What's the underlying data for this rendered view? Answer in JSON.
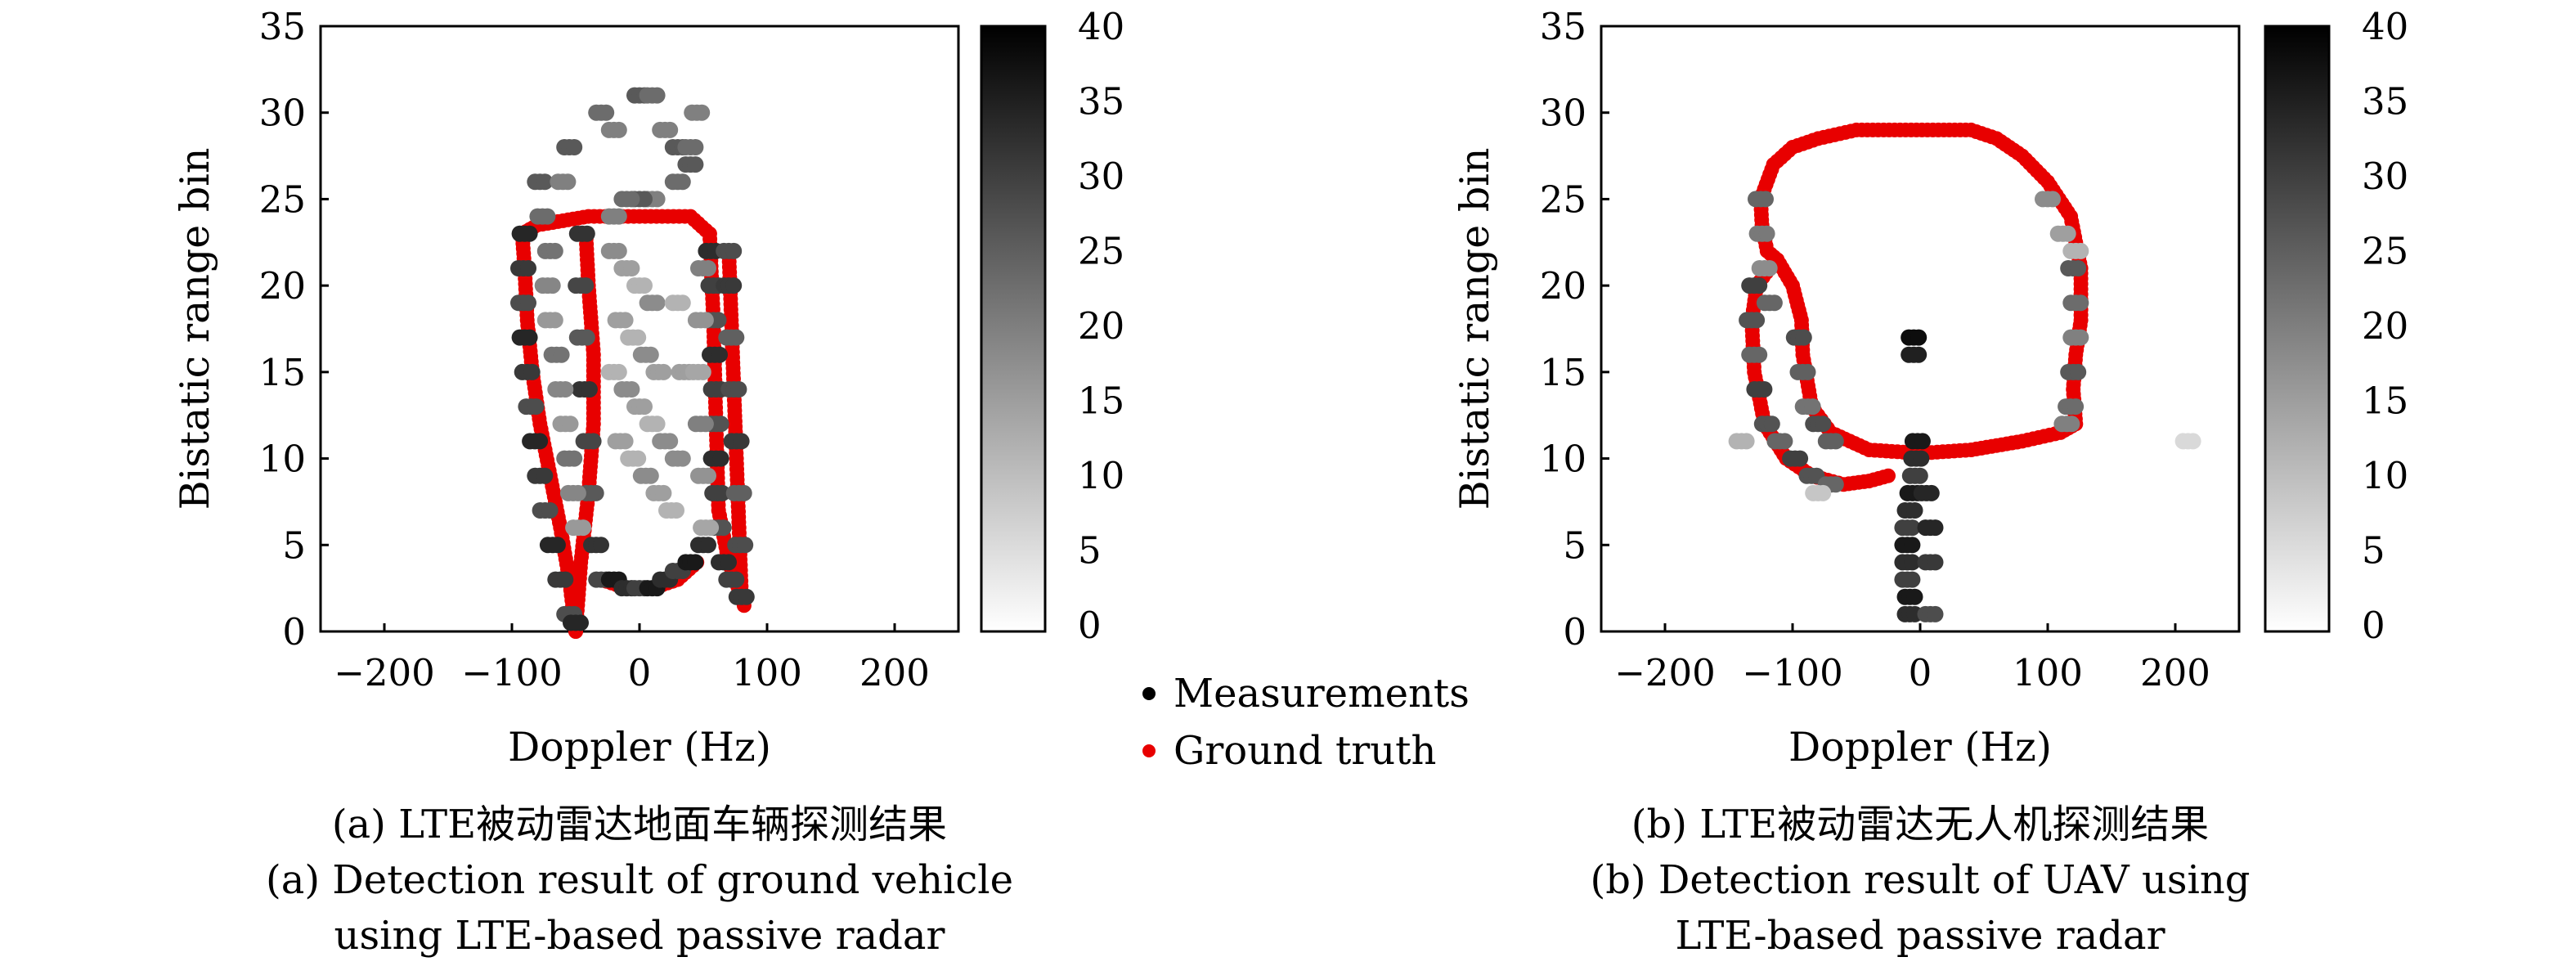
{
  "colors": {
    "measurement_dark": "#000000",
    "measurement_light": "#ffffff",
    "ground_truth": "#e80000"
  },
  "legend": {
    "measurements": "Measurements",
    "ground_truth": "Ground truth"
  },
  "chart_data": [
    {
      "type": "scatter",
      "panel": "a",
      "xlabel": "Doppler (Hz)",
      "ylabel": "Bistatic range bin",
      "xlim": [
        -250,
        250
      ],
      "ylim": [
        0,
        35
      ],
      "xticks": [
        -200,
        -100,
        0,
        100,
        200
      ],
      "yticks": [
        0,
        5,
        10,
        15,
        20,
        25,
        30,
        35
      ],
      "xtick_labels": [
        "−200",
        "−100",
        "0",
        "100",
        "200"
      ],
      "ytick_labels": [
        "0",
        "5",
        "10",
        "15",
        "20",
        "25",
        "30",
        "35"
      ],
      "colorbar": {
        "range": [
          0,
          40
        ],
        "ticks": [
          "0",
          "5",
          "10",
          "15",
          "20",
          "25",
          "30",
          "35",
          "40"
        ],
        "colormap": "white-to-black"
      },
      "caption_cn": "(a) LTE被动雷达地面车辆探测结果",
      "caption_en_1": "(a) Detection result of ground vehicle",
      "caption_en_2": "using LTE-based passive radar",
      "ground_truth": [
        [
          [
            -50,
            0
          ],
          [
            -55,
            3
          ],
          [
            -62,
            6
          ],
          [
            -70,
            9
          ],
          [
            -78,
            12
          ],
          [
            -84,
            15
          ],
          [
            -88,
            18
          ],
          [
            -90,
            21
          ],
          [
            -92,
            23
          ],
          [
            -80,
            23.5
          ],
          [
            -40,
            24
          ],
          [
            0,
            24
          ],
          [
            40,
            24
          ],
          [
            55,
            23
          ]
        ],
        [
          [
            -50,
            0
          ],
          [
            -46,
            4
          ],
          [
            -40,
            8
          ],
          [
            -36,
            12
          ],
          [
            -36,
            16
          ],
          [
            -40,
            20
          ],
          [
            -42,
            23
          ]
        ],
        [
          [
            -30,
            3
          ],
          [
            -10,
            2.5
          ],
          [
            10,
            2.5
          ],
          [
            30,
            3
          ],
          [
            45,
            4
          ]
        ],
        [
          [
            55,
            23
          ],
          [
            58,
            18
          ],
          [
            60,
            12
          ],
          [
            62,
            7
          ],
          [
            70,
            4
          ],
          [
            80,
            2
          ],
          [
            82,
            1.5
          ]
        ],
        [
          [
            80,
            2
          ],
          [
            78,
            6
          ],
          [
            76,
            10
          ],
          [
            74,
            14
          ],
          [
            72,
            18
          ],
          [
            70,
            22
          ]
        ]
      ],
      "measurement_groups": [
        {
          "points": [
            [
              -90,
              23
            ],
            [
              -91,
              21
            ],
            [
              -91,
              19
            ],
            [
              -90,
              17
            ],
            [
              -88,
              15
            ],
            [
              -85,
              13
            ],
            [
              -82,
              11
            ],
            [
              -78,
              9
            ],
            [
              -74,
              7
            ],
            [
              -68,
              5
            ],
            [
              -62,
              3
            ],
            [
              -55,
              1
            ],
            [
              -50,
              0.5
            ]
          ],
          "intensity": 34
        },
        {
          "points": [
            [
              -45,
              23
            ],
            [
              -46,
              20
            ],
            [
              -45,
              17
            ],
            [
              -43,
              14
            ],
            [
              -40,
              11
            ],
            [
              -38,
              8
            ],
            [
              -34,
              5
            ],
            [
              -30,
              3
            ]
          ],
          "intensity": 32
        },
        {
          "points": [
            [
              -20,
              3
            ],
            [
              -10,
              2.5
            ],
            [
              0,
              2.5
            ],
            [
              10,
              2.5
            ],
            [
              20,
              3
            ],
            [
              30,
              3.5
            ],
            [
              40,
              4
            ],
            [
              50,
              5
            ]
          ],
          "intensity": 36
        },
        {
          "points": [
            [
              56,
              22
            ],
            [
              58,
              20
            ],
            [
              58,
              18
            ],
            [
              59,
              16
            ],
            [
              60,
              14
            ],
            [
              60,
              12
            ],
            [
              60,
              10
            ],
            [
              61,
              8
            ],
            [
              62,
              6
            ],
            [
              66,
              4
            ],
            [
              72,
              3
            ]
          ],
          "intensity": 33
        },
        {
          "points": [
            [
              80,
              2
            ],
            [
              79,
              5
            ],
            [
              78,
              8
            ],
            [
              76,
              11
            ],
            [
              74,
              14
            ],
            [
              72,
              17
            ],
            [
              70,
              20
            ],
            [
              70,
              22
            ]
          ],
          "intensity": 31
        },
        {
          "points": [
            [
              -78,
              26
            ],
            [
              -76,
              24
            ],
            [
              -60,
              26
            ],
            [
              -55,
              28
            ],
            [
              -30,
              30
            ],
            [
              -20,
              29
            ],
            [
              0,
              31
            ],
            [
              10,
              31
            ],
            [
              20,
              29
            ],
            [
              30,
              28
            ],
            [
              40,
              28
            ],
            [
              45,
              30
            ],
            [
              40,
              27
            ],
            [
              30,
              26
            ],
            [
              10,
              25
            ],
            [
              0,
              25
            ],
            [
              -10,
              25
            ],
            [
              -20,
              24
            ]
          ],
          "intensity": 26
        },
        {
          "points": [
            [
              -20,
              22
            ],
            [
              -10,
              21
            ],
            [
              0,
              20
            ],
            [
              10,
              19
            ],
            [
              -15,
              18
            ],
            [
              -5,
              17
            ],
            [
              5,
              16
            ],
            [
              15,
              15
            ],
            [
              -20,
              15
            ],
            [
              -10,
              14
            ],
            [
              0,
              13
            ],
            [
              10,
              12
            ],
            [
              20,
              11
            ],
            [
              -15,
              11
            ],
            [
              -5,
              10
            ],
            [
              5,
              9
            ],
            [
              15,
              8
            ],
            [
              25,
              7
            ],
            [
              30,
              10
            ],
            [
              35,
              15
            ],
            [
              30,
              19
            ]
          ],
          "intensity": 18
        },
        {
          "points": [
            [
              -70,
              22
            ],
            [
              -72,
              20
            ],
            [
              -70,
              18
            ],
            [
              -65,
              16
            ],
            [
              -62,
              14
            ],
            [
              -58,
              12
            ],
            [
              -55,
              10
            ],
            [
              -52,
              8
            ],
            [
              -48,
              6
            ]
          ],
          "intensity": 22
        },
        {
          "points": [
            [
              50,
              21
            ],
            [
              48,
              18
            ],
            [
              46,
              15
            ],
            [
              48,
              12
            ],
            [
              50,
              9
            ],
            [
              52,
              6
            ]
          ],
          "intensity": 20
        }
      ]
    },
    {
      "type": "scatter",
      "panel": "b",
      "xlabel": "Doppler (Hz)",
      "ylabel": "Bistatic range bin",
      "xlim": [
        -250,
        250
      ],
      "ylim": [
        0,
        35
      ],
      "xticks": [
        -200,
        -100,
        0,
        100,
        200
      ],
      "yticks": [
        0,
        5,
        10,
        15,
        20,
        25,
        30,
        35
      ],
      "xtick_labels": [
        "−200",
        "−100",
        "0",
        "100",
        "200"
      ],
      "ytick_labels": [
        "0",
        "5",
        "10",
        "15",
        "20",
        "25",
        "30",
        "35"
      ],
      "colorbar": {
        "range": [
          0,
          40
        ],
        "ticks": [
          "0",
          "5",
          "10",
          "15",
          "20",
          "25",
          "30",
          "35",
          "40"
        ],
        "colormap": "white-to-black"
      },
      "caption_cn": "(b) LTE被动雷达无人机探测结果",
      "caption_en_1": "(b) Detection result of UAV using",
      "caption_en_2": "LTE-based passive radar",
      "ground_truth": [
        [
          [
            -125,
            25
          ],
          [
            -115,
            27
          ],
          [
            -100,
            28
          ],
          [
            -80,
            28.5
          ],
          [
            -50,
            29
          ],
          [
            -20,
            29
          ],
          [
            10,
            29
          ],
          [
            40,
            29
          ],
          [
            60,
            28.5
          ],
          [
            80,
            27.5
          ],
          [
            100,
            26
          ],
          [
            118,
            24
          ],
          [
            126,
            21
          ],
          [
            126,
            18
          ],
          [
            122,
            16
          ],
          [
            120,
            14
          ],
          [
            122,
            12
          ],
          [
            110,
            11.5
          ],
          [
            80,
            11
          ],
          [
            40,
            10.5
          ],
          [
            0,
            10.3
          ],
          [
            -40,
            10.5
          ],
          [
            -70,
            11.5
          ],
          [
            -85,
            13
          ],
          [
            -92,
            16
          ],
          [
            -93,
            18
          ],
          [
            -100,
            20
          ],
          [
            -112,
            21.5
          ],
          [
            -120,
            22
          ],
          [
            -124,
            23.5
          ],
          [
            -125,
            25
          ]
        ],
        [
          [
            -118,
            21
          ],
          [
            -128,
            20
          ],
          [
            -132,
            18
          ],
          [
            -130,
            15
          ],
          [
            -122,
            12
          ],
          [
            -105,
            10
          ],
          [
            -85,
            9
          ],
          [
            -60,
            8.5
          ],
          [
            -40,
            8.7
          ],
          [
            -25,
            9
          ]
        ]
      ],
      "measurement_groups": [
        {
          "points": [
            [
              -130,
              20
            ],
            [
              -132,
              18
            ],
            [
              -130,
              16
            ],
            [
              -126,
              14
            ],
            [
              -120,
              12
            ],
            [
              -110,
              11
            ],
            [
              -98,
              10
            ],
            [
              -85,
              9
            ],
            [
              -70,
              8.5
            ]
          ],
          "intensity": 30
        },
        {
          "points": [
            [
              -125,
              25
            ],
            [
              -124,
              23
            ],
            [
              -122,
              21
            ],
            [
              -118,
              19
            ]
          ],
          "intensity": 24
        },
        {
          "points": [
            [
              -95,
              17
            ],
            [
              -92,
              15
            ],
            [
              -88,
              13
            ],
            [
              -80,
              12
            ],
            [
              -70,
              11
            ]
          ],
          "intensity": 28
        },
        {
          "points": [
            [
              120,
              21
            ],
            [
              122,
              19
            ],
            [
              122,
              17
            ],
            [
              120,
              15
            ],
            [
              118,
              13
            ],
            [
              115,
              12
            ]
          ],
          "intensity": 26
        },
        {
          "points": [
            [
              100,
              25
            ],
            [
              112,
              23
            ],
            [
              122,
              22
            ]
          ],
          "intensity": 18
        },
        {
          "points": [
            [
              -5,
              17
            ],
            [
              -5,
              16
            ]
          ],
          "intensity": 38
        },
        {
          "points": [
            [
              -2,
              11
            ],
            [
              -3,
              10
            ],
            [
              -4,
              9
            ],
            [
              -6,
              8
            ],
            [
              -8,
              7
            ],
            [
              -10,
              6
            ],
            [
              -10,
              5
            ],
            [
              -10,
              4
            ],
            [
              -10,
              3
            ],
            [
              -8,
              2
            ],
            [
              -8,
              1
            ]
          ],
          "intensity": 36
        },
        {
          "points": [
            [
              8,
              6
            ],
            [
              8,
              4
            ],
            [
              8,
              1
            ],
            [
              5,
              8
            ]
          ],
          "intensity": 34
        },
        {
          "points": [
            [
              -140,
              11
            ],
            [
              -80,
              8
            ],
            [
              210,
              11
            ]
          ],
          "intensity": 12
        }
      ]
    }
  ]
}
